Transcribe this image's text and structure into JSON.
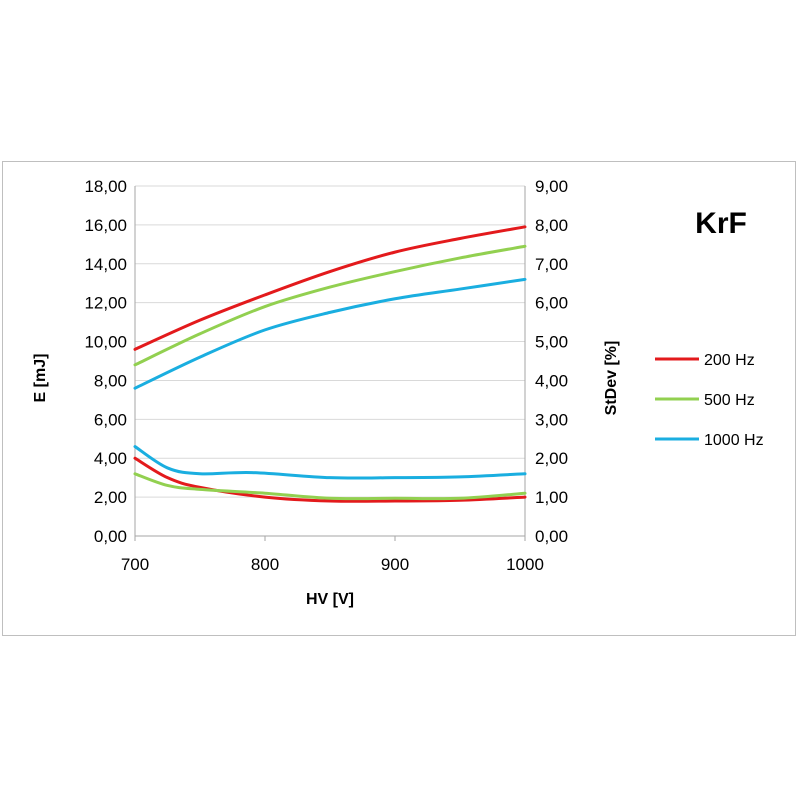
{
  "chart_data": {
    "type": "line",
    "title": "KrF",
    "xlabel": "HV [V]",
    "ylabel_left": "E [mJ]",
    "ylabel_right": "StDev [%]",
    "xlim": [
      700,
      1000
    ],
    "ylim_left": [
      0,
      18
    ],
    "ylim_right": [
      0,
      9
    ],
    "x_ticks": [
      "700",
      "800",
      "900",
      "1000"
    ],
    "x_tick_values": [
      700,
      800,
      900,
      1000
    ],
    "y_left_ticks": [
      "0,00",
      "2,00",
      "4,00",
      "6,00",
      "8,00",
      "10,00",
      "12,00",
      "14,00",
      "16,00",
      "18,00"
    ],
    "y_right_ticks": [
      "0,00",
      "1,00",
      "2,00",
      "3,00",
      "4,00",
      "5,00",
      "6,00",
      "7,00",
      "8,00",
      "9,00"
    ],
    "grid": true,
    "legend_position": "right",
    "legend": [
      {
        "label": "200 Hz",
        "color": "#e31a1c"
      },
      {
        "label": "500 Hz",
        "color": "#92d050"
      },
      {
        "label": "1000 Hz",
        "color": "#1aaee0"
      }
    ],
    "series": [
      {
        "name": "200 Hz",
        "measure": "E",
        "axis": "left",
        "color": "#e31a1c",
        "x": [
          700,
          750,
          800,
          850,
          900,
          950,
          1000
        ],
        "y": [
          9.6,
          11.1,
          12.4,
          13.6,
          14.6,
          15.3,
          15.9
        ]
      },
      {
        "name": "500 Hz",
        "measure": "E",
        "axis": "left",
        "color": "#92d050",
        "x": [
          700,
          750,
          800,
          850,
          900,
          950,
          1000
        ],
        "y": [
          8.8,
          10.4,
          11.8,
          12.8,
          13.6,
          14.3,
          14.9
        ]
      },
      {
        "name": "1000 Hz",
        "measure": "E",
        "axis": "left",
        "color": "#1aaee0",
        "x": [
          700,
          750,
          800,
          850,
          900,
          950,
          1000
        ],
        "y": [
          7.6,
          9.2,
          10.6,
          11.5,
          12.2,
          12.7,
          13.2
        ]
      },
      {
        "name": "200 Hz",
        "measure": "StDev",
        "axis": "right",
        "color": "#e31a1c",
        "x": [
          700,
          725,
          750,
          800,
          850,
          900,
          950,
          1000
        ],
        "y": [
          2.0,
          1.5,
          1.25,
          1.0,
          0.9,
          0.9,
          0.92,
          1.0
        ]
      },
      {
        "name": "500 Hz",
        "measure": "StDev",
        "axis": "right",
        "color": "#92d050",
        "x": [
          700,
          725,
          750,
          800,
          850,
          900,
          950,
          1000
        ],
        "y": [
          1.6,
          1.3,
          1.2,
          1.1,
          0.97,
          0.97,
          0.97,
          1.1
        ]
      },
      {
        "name": "1000 Hz",
        "measure": "StDev",
        "axis": "right",
        "color": "#1aaee0",
        "x": [
          700,
          725,
          750,
          790,
          850,
          900,
          950,
          1000
        ],
        "y": [
          2.3,
          1.75,
          1.6,
          1.63,
          1.5,
          1.5,
          1.52,
          1.6
        ]
      }
    ]
  }
}
